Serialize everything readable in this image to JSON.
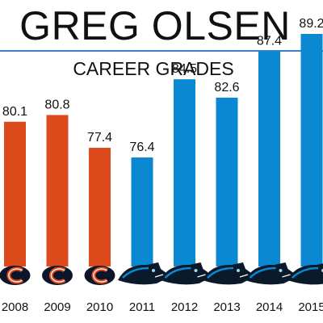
{
  "header": {
    "title": "GREG OLSEN",
    "subtitle": "CAREER GRADES"
  },
  "colors": {
    "bears": "#dd4a1c",
    "panthers": "#0a88d2",
    "divider": "#3a7fc1"
  },
  "chart_data": {
    "type": "bar",
    "title": "GREG OLSEN",
    "subtitle": "CAREER GRADES",
    "categories": [
      "2008",
      "2009",
      "2010",
      "2011",
      "2012",
      "2013",
      "2014",
      "2015"
    ],
    "values": [
      80.1,
      80.8,
      77.4,
      76.4,
      84.5,
      82.6,
      87.4,
      89.2
    ],
    "value_labels": [
      "80.1",
      "80.8",
      "77.4",
      "76.4",
      "84.5",
      "82.6",
      "87.4",
      "89.2"
    ],
    "teams": [
      "bears",
      "bears",
      "bears",
      "panthers",
      "panthers",
      "panthers",
      "panthers",
      "panthers"
    ],
    "team_icons": [
      "bears-logo-icon",
      "bears-logo-icon",
      "bears-logo-icon",
      "panthers-logo-icon",
      "panthers-logo-icon",
      "panthers-logo-icon",
      "panthers-logo-icon",
      "panthers-logo-icon"
    ],
    "xlabel": "",
    "ylabel": "",
    "grid": false,
    "legend": "none"
  }
}
